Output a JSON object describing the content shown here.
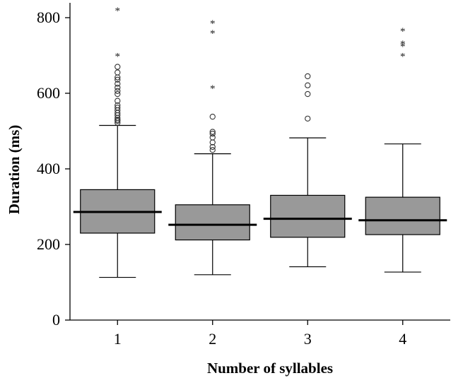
{
  "chart_data": {
    "type": "boxplot",
    "title": "",
    "xlabel": "Number of syllables",
    "ylabel": "Duration (ms)",
    "ylim": [
      0,
      800
    ],
    "y_ticks": [
      0,
      200,
      400,
      600,
      800
    ],
    "categories": [
      "1",
      "2",
      "3",
      "4"
    ],
    "boxes": [
      {
        "category": "1",
        "whisker_low": 113,
        "q1": 230,
        "median": 286,
        "q3": 345,
        "whisker_high": 515,
        "outliers": [
          522,
          527,
          530,
          535,
          542,
          548,
          555,
          562,
          568,
          580,
          598,
          606,
          615,
          625,
          636,
          642,
          655,
          670
        ],
        "extremes": [
          702,
          822
        ]
      },
      {
        "category": "2",
        "whisker_low": 120,
        "q1": 212,
        "median": 252,
        "q3": 305,
        "whisker_high": 440,
        "outliers": [
          450,
          458,
          470,
          483,
          493,
          498,
          538
        ],
        "extremes": [
          617,
          763,
          789
        ]
      },
      {
        "category": "3",
        "whisker_low": 141,
        "q1": 219,
        "median": 268,
        "q3": 330,
        "whisker_high": 482,
        "outliers": [
          533,
          598,
          621,
          645
        ],
        "extremes": []
      },
      {
        "category": "4",
        "whisker_low": 127,
        "q1": 226,
        "median": 264,
        "q3": 325,
        "whisker_high": 466,
        "outliers": [],
        "extremes": [
          702,
          728,
          735,
          768
        ]
      }
    ],
    "colors": {
      "box_fill": "#999999",
      "stroke": "#000000"
    },
    "grid": false,
    "legend": "none"
  }
}
